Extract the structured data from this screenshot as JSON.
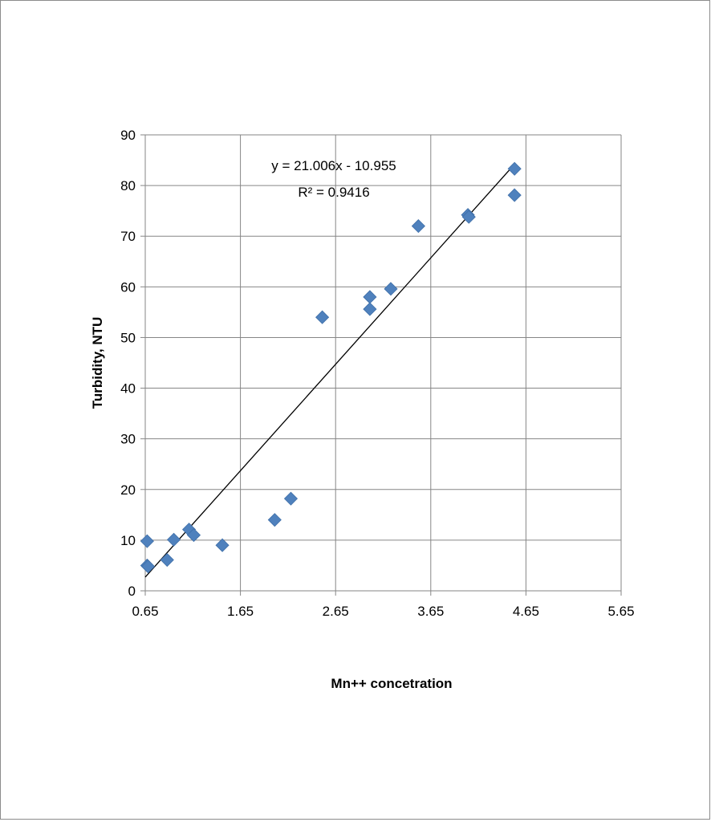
{
  "chart_data": {
    "type": "scatter",
    "title": "",
    "xlabel": "Mn++ concetration",
    "ylabel": "Turbidity, NTU",
    "xlim": [
      0.65,
      5.65
    ],
    "ylim": [
      0,
      90
    ],
    "x_ticks": [
      "0.65",
      "1.65",
      "2.65",
      "3.65",
      "4.65",
      "5.65"
    ],
    "y_ticks": [
      "0",
      "10",
      "20",
      "30",
      "40",
      "50",
      "60",
      "70",
      "80",
      "90"
    ],
    "grid": true,
    "legend": "none",
    "marker": "diamond",
    "series_color": "#4F81BD",
    "points": [
      {
        "x": 0.67,
        "y": 9.8
      },
      {
        "x": 0.67,
        "y": 5.0
      },
      {
        "x": 0.68,
        "y": 4.8
      },
      {
        "x": 0.88,
        "y": 6.1
      },
      {
        "x": 0.95,
        "y": 10.1
      },
      {
        "x": 1.11,
        "y": 12.1
      },
      {
        "x": 1.16,
        "y": 11.0
      },
      {
        "x": 1.46,
        "y": 9.0
      },
      {
        "x": 2.01,
        "y": 14.0
      },
      {
        "x": 2.18,
        "y": 18.2
      },
      {
        "x": 2.51,
        "y": 54.0
      },
      {
        "x": 3.01,
        "y": 58.0
      },
      {
        "x": 3.01,
        "y": 55.6
      },
      {
        "x": 3.23,
        "y": 59.6
      },
      {
        "x": 3.52,
        "y": 72.0
      },
      {
        "x": 4.04,
        "y": 74.2
      },
      {
        "x": 4.05,
        "y": 73.8
      },
      {
        "x": 4.53,
        "y": 83.3
      },
      {
        "x": 4.53,
        "y": 78.1
      }
    ],
    "trendline": {
      "type": "linear",
      "slope": 21.006,
      "intercept": -10.955,
      "x_range": [
        0.65,
        4.5
      ],
      "equation": "y = 21.006x - 10.955",
      "r_squared": "R² = 0.9416"
    }
  }
}
